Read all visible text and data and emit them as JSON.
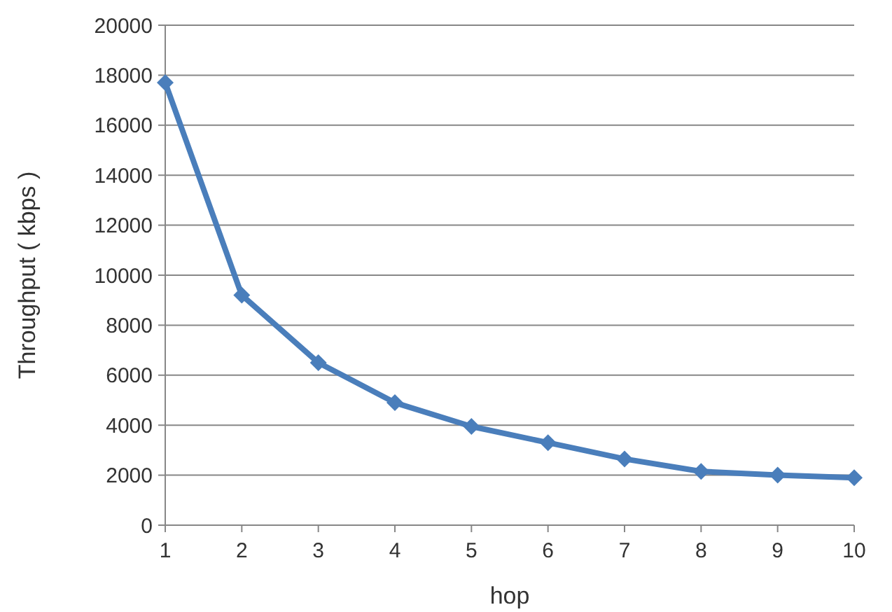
{
  "chart_data": {
    "type": "line",
    "xlabel": "hop",
    "ylabel": "Throughput ( kbps )",
    "categories": [
      "1",
      "2",
      "3",
      "4",
      "5",
      "6",
      "7",
      "8",
      "9",
      "10"
    ],
    "series": [
      {
        "color": "#4a7ebb",
        "values": [
          17700,
          9200,
          6500,
          4900,
          3950,
          3300,
          2650,
          2150,
          2000,
          1900
        ]
      }
    ],
    "ylim": [
      0,
      20000
    ],
    "yticks": [
      0,
      2000,
      4000,
      6000,
      8000,
      10000,
      12000,
      14000,
      16000,
      18000,
      20000
    ],
    "grid": "y",
    "marker": "diamond",
    "line_style": "solid"
  }
}
